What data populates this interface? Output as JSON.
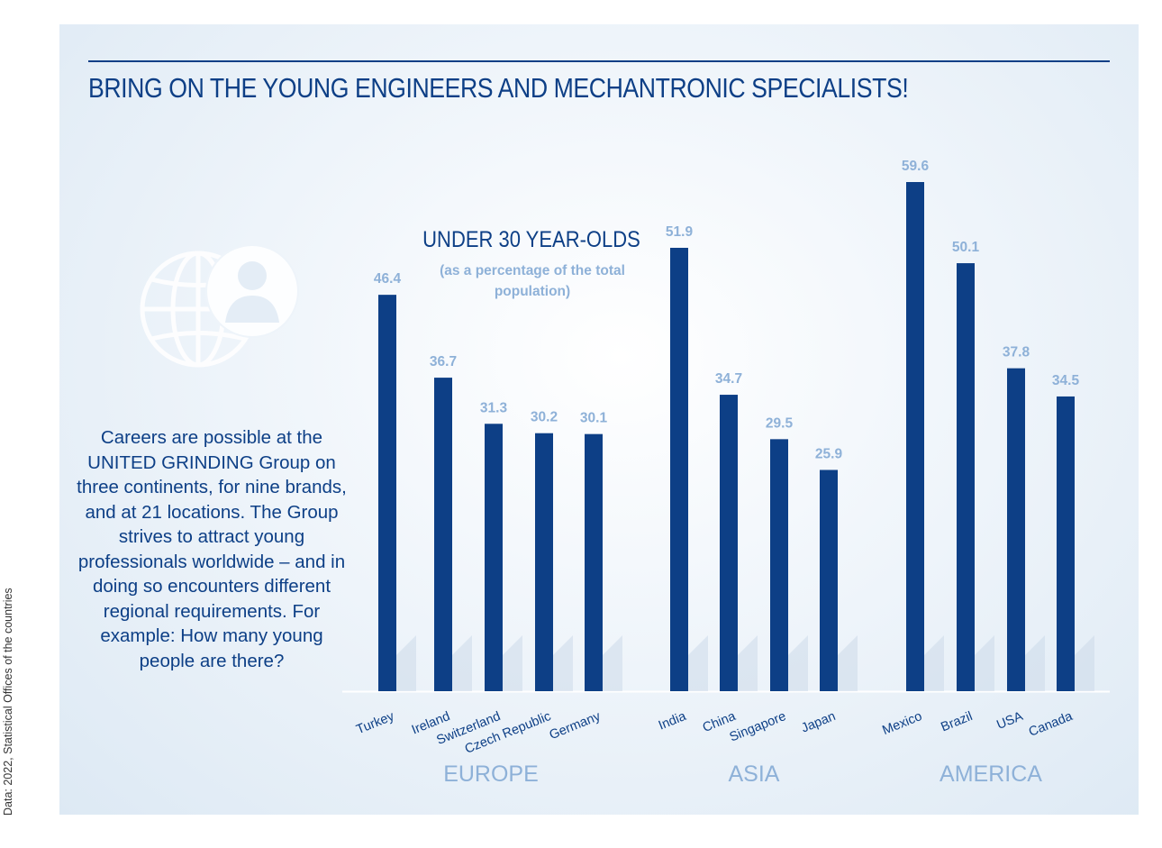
{
  "title": "BRING ON THE YOUNG ENGINEERS AND MECHANTRONIC SPECIALISTS!",
  "source_note": "Data: 2022, Statistical Offices of the countries",
  "intro_text": "Careers are possible at the UNITED GRINDING Group on three continents, for nine brands, and at 21 locations. The Group strives to attract young professionals worldwide – and in doing so encounters different regional requirements. For example: How many young people are there?",
  "colors": {
    "bar": "#0d3f86",
    "value_label": "#8eb1d8",
    "group_label": "#8eb1d8",
    "title": "#0d3f86"
  },
  "icon": "globe-person-icon",
  "chart_data": {
    "type": "bar",
    "title": "UNDER 30 YEAR-OLDS",
    "subtitle": "(as a percentage of the total population)",
    "unit": "%",
    "ylim": [
      0,
      60
    ],
    "grid": false,
    "groups": [
      {
        "name": "EUROPE",
        "categories": [
          "Turkey",
          "Ireland",
          "Switzerland",
          "Czech Republic",
          "Germany"
        ],
        "values": [
          46.4,
          36.7,
          31.3,
          30.2,
          30.1
        ]
      },
      {
        "name": "ASIA",
        "categories": [
          "India",
          "China",
          "Singapore",
          "Japan"
        ],
        "values": [
          51.9,
          34.7,
          29.5,
          25.9
        ]
      },
      {
        "name": "AMERICA",
        "categories": [
          "Mexico",
          "Brazil",
          "USA",
          "Canada"
        ],
        "values": [
          59.6,
          50.1,
          37.8,
          34.5
        ]
      }
    ]
  }
}
